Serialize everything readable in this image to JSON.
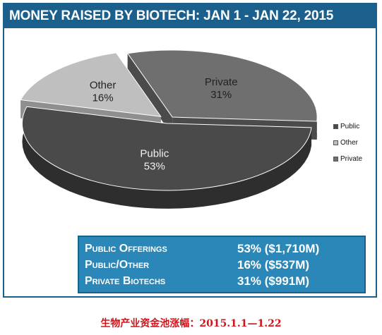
{
  "title": "MONEY RAISED BY BIOTECH: JAN 1 - JAN 22, 2015",
  "chart_data": {
    "type": "pie",
    "title": "MONEY RAISED BY BIOTECH: JAN 1 - JAN 22, 2015",
    "categories": [
      "Public",
      "Other",
      "Private"
    ],
    "values": [
      53,
      16,
      31
    ],
    "labels": [
      "Public\n53%",
      "Other\n16%",
      "Private\n31%"
    ],
    "colors": {
      "Public": "#4a4a4a",
      "Other": "#bfbfbf",
      "Private": "#6f6f6f"
    },
    "legend_position": "right",
    "style": "3d-exploded"
  },
  "slices": [
    {
      "name": "Public",
      "percent": "53%"
    },
    {
      "name": "Other",
      "percent": "16%"
    },
    {
      "name": "Private",
      "percent": "31%"
    }
  ],
  "legend": [
    "Public",
    "Other",
    "Private"
  ],
  "summary": [
    {
      "label": "Public Offerings",
      "value": "53% ($1,710M)"
    },
    {
      "label": "Public/Other",
      "value": "16% ($537M)"
    },
    {
      "label": "Private Biotechs",
      "value": "31% ($991M)"
    }
  ],
  "caption": "生物产业资金池涨幅：2015.1.1—1.22"
}
